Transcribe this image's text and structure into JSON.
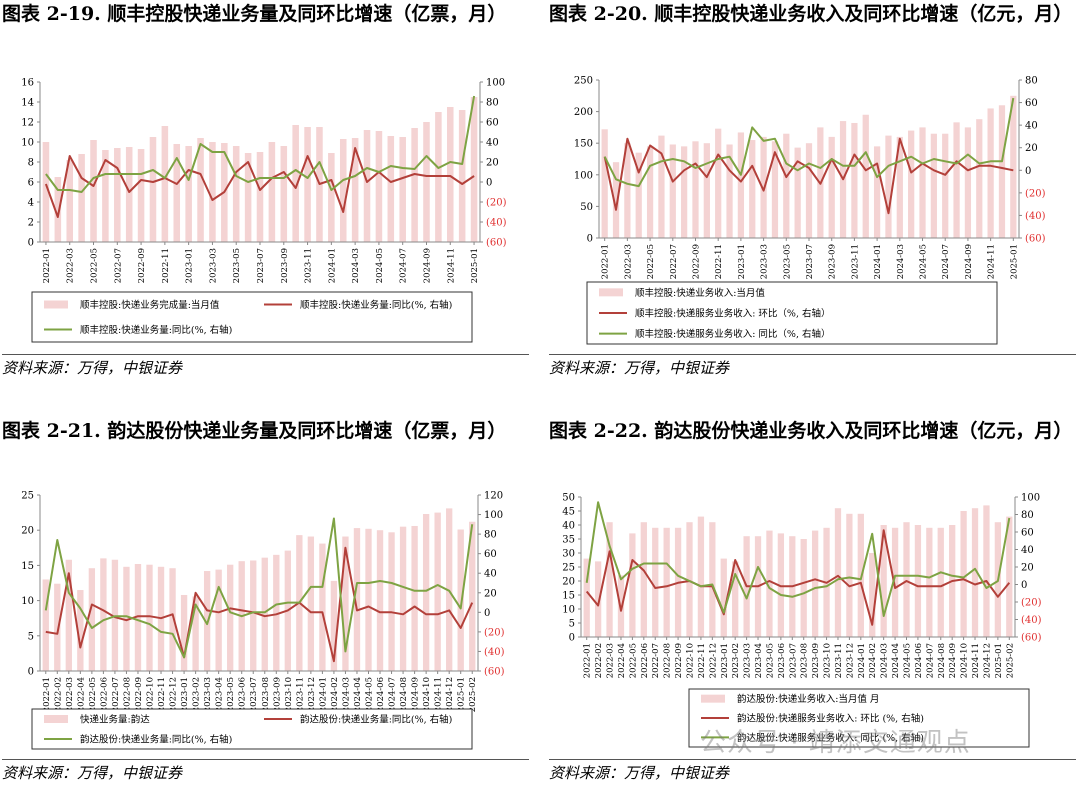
{
  "source_note": "资料来源：万得，中银证券",
  "watermark": "公众号 · 靖添交通观点",
  "colors": {
    "bar": "#f4d3d3",
    "mom": "#b3403a",
    "yoy": "#7ea343",
    "right_axis": "#e03030"
  },
  "chart_data": [
    {
      "type": "bar+line",
      "title": "图表 2-19. 顺丰控股快递业务量及同环比增速（亿票，月）",
      "left_ylim": [
        0,
        16
      ],
      "left_ticks": [
        0,
        2,
        4,
        6,
        8,
        10,
        12,
        14,
        16
      ],
      "right_ylim": [
        -60,
        100
      ],
      "right_ticks": [
        -60,
        -40,
        -20,
        0,
        20,
        40,
        60,
        80,
        100
      ],
      "right_tick_labels": [
        "(60)",
        "(40)",
        "(20)",
        "0",
        "20",
        "40",
        "60",
        "80",
        "100"
      ],
      "x_tick_labels": [
        "2022-01",
        "2022-03",
        "2022-05",
        "2022-07",
        "2022-09",
        "2022-11",
        "2023-01",
        "2023-03",
        "2023-05",
        "2023-07",
        "2023-09",
        "2023-11",
        "2024-01",
        "2024-03",
        "2024-05",
        "2024-07",
        "2024-09",
        "2024-11",
        "2025-01"
      ],
      "legend": [
        "顺丰控股:快递业务完成量:当月值",
        "顺丰控股:快递业务量:同比(%, 右轴)",
        "顺丰控股:快递业务量:同比(%, 右轴)"
      ],
      "bars": [
        10.0,
        6.5,
        8.2,
        8.8,
        10.2,
        9.2,
        9.4,
        9.5,
        9.3,
        10.5,
        11.6,
        9.8,
        9.6,
        10.4,
        10.0,
        9.9,
        9.6,
        8.9,
        9.0,
        10.0,
        9.6,
        11.7,
        11.5,
        11.5,
        8.9,
        10.3,
        10.4,
        11.2,
        11.1,
        10.6,
        10.5,
        11.4,
        12.0,
        13.0,
        13.5,
        13.2,
        14.5
      ],
      "mom": [
        -2,
        -35,
        26,
        4,
        -4,
        22,
        14,
        -10,
        2,
        0,
        4,
        -2,
        12,
        8,
        -18,
        -10,
        10,
        20,
        -8,
        4,
        10,
        -6,
        26,
        -2,
        2,
        -30,
        34,
        0,
        10,
        0,
        4,
        8,
        6,
        6,
        6,
        -2,
        6
      ],
      "yoy": [
        8,
        -8,
        -8,
        -10,
        4,
        8,
        8,
        8,
        8,
        12,
        4,
        24,
        2,
        38,
        30,
        30,
        6,
        0,
        4,
        4,
        4,
        12,
        4,
        20,
        -8,
        2,
        6,
        14,
        10,
        16,
        14,
        13,
        26,
        14,
        20,
        18,
        86
      ]
    },
    {
      "type": "bar+line",
      "title": "图表 2-20. 顺丰控股快递业务收入及同环比增速（亿元，月）",
      "left_ylim": [
        0,
        250
      ],
      "left_ticks": [
        0,
        50,
        100,
        150,
        200,
        250
      ],
      "right_ylim": [
        -60,
        80
      ],
      "right_ticks": [
        -60,
        -40,
        -20,
        0,
        20,
        40,
        60,
        80
      ],
      "right_tick_labels": [
        "(60)",
        "(40)",
        "(20)",
        "0",
        "20",
        "40",
        "60",
        "80"
      ],
      "x_tick_labels": [
        "2022-01",
        "2022-03",
        "2022-05",
        "2022-07",
        "2022-09",
        "2022-11",
        "2023-01",
        "2023-03",
        "2023-05",
        "2023-07",
        "2023-09",
        "2023-11",
        "2024-01",
        "2024-03",
        "2024-05",
        "2024-07",
        "2024-09",
        "2024-11",
        "2025-01"
      ],
      "legend": [
        "顺丰控股:快递业务收入:当月值",
        "顺丰控股:快递服务业务收入: 环比（%, 右轴）",
        "顺丰控股:快递服务业务收入: 同比（%, 右轴）"
      ],
      "bars": [
        172,
        120,
        150,
        135,
        145,
        162,
        148,
        145,
        153,
        150,
        173,
        148,
        167,
        155,
        160,
        153,
        165,
        143,
        150,
        175,
        160,
        185,
        182,
        195,
        145,
        162,
        160,
        170,
        175,
        165,
        165,
        183,
        175,
        188,
        205,
        210,
        225
      ],
      "mom": [
        12,
        -35,
        28,
        -2,
        22,
        15,
        -10,
        0,
        6,
        -6,
        14,
        0,
        -10,
        4,
        -18,
        16,
        -6,
        8,
        2,
        -12,
        10,
        -8,
        14,
        0,
        6,
        -38,
        28,
        -2,
        6,
        0,
        -4,
        8,
        0,
        4,
        4,
        2,
        0
      ],
      "yoy": [
        12,
        -8,
        -12,
        -14,
        4,
        8,
        10,
        8,
        2,
        6,
        10,
        12,
        -4,
        38,
        26,
        28,
        6,
        0,
        6,
        2,
        10,
        4,
        4,
        16,
        -6,
        4,
        8,
        12,
        6,
        10,
        8,
        6,
        14,
        6,
        8,
        8,
        64
      ]
    },
    {
      "type": "bar+line",
      "title": "图表 2-21. 韵达股份快递业务量及同环比增速（亿票，月）",
      "left_ylim": [
        0,
        25
      ],
      "left_ticks": [
        0,
        5,
        10,
        15,
        20,
        25
      ],
      "right_ylim": [
        -60,
        120
      ],
      "right_ticks": [
        -60,
        -40,
        -20,
        0,
        20,
        40,
        60,
        80,
        100,
        120
      ],
      "right_tick_labels": [
        "(60)",
        "(40)",
        "(20)",
        "0",
        "20",
        "40",
        "60",
        "80",
        "100",
        "120"
      ],
      "x_tick_labels": [
        "2022-01",
        "2022-02",
        "2022-03",
        "2022-04",
        "2022-05",
        "2022-06",
        "2022-07",
        "2022-08",
        "2022-09",
        "2022-10",
        "2022-11",
        "2022-12",
        "2023-01",
        "2023-02",
        "2023-03",
        "2023-04",
        "2023-05",
        "2023-06",
        "2023-07",
        "2023-08",
        "2023-09",
        "2023-10",
        "2023-11",
        "2023-12",
        "2024-01",
        "2024-02",
        "2024-03",
        "2024-04",
        "2024-05",
        "2024-06",
        "2024-07",
        "2024-08",
        "2024-09",
        "2024-10",
        "2024-11",
        "2024-12",
        "2025-01",
        "2025-02"
      ],
      "legend": [
        "快递业务量:韵达",
        "韵达股份:快递业务量:同比(%, 右轴)",
        "韵达股份:快递业务量:同比(%, 右轴)"
      ],
      "bars": [
        13.0,
        12.4,
        15.8,
        11.5,
        14.6,
        16.0,
        15.8,
        14.8,
        15.2,
        15.1,
        14.8,
        14.6,
        10.8,
        10.6,
        14.2,
        14.4,
        15.1,
        15.6,
        15.7,
        16.1,
        16.5,
        17.1,
        19.3,
        19.1,
        18.1,
        12.8,
        19.1,
        20.3,
        20.2,
        20.0,
        19.7,
        20.5,
        20.6,
        22.3,
        22.5,
        23.1,
        20.1,
        21.2
      ],
      "mom": [
        -20,
        -22,
        40,
        -36,
        8,
        2,
        -5,
        -8,
        -4,
        -4,
        -6,
        -2,
        -46,
        20,
        2,
        0,
        4,
        2,
        0,
        -4,
        -2,
        2,
        10,
        0,
        0,
        -50,
        66,
        2,
        6,
        0,
        0,
        -2,
        6,
        -2,
        -2,
        2,
        -16,
        10
      ],
      "yoy": [
        2,
        74,
        20,
        4,
        -16,
        -8,
        -4,
        -4,
        -8,
        -12,
        -20,
        -22,
        -46,
        8,
        -12,
        26,
        0,
        -4,
        0,
        0,
        8,
        10,
        10,
        26,
        26,
        96,
        -40,
        30,
        30,
        32,
        30,
        26,
        22,
        22,
        28,
        22,
        4,
        90
      ]
    },
    {
      "type": "bar+line",
      "title": "图表 2-22. 韵达股份快递业务收入及同环比增速（亿元，月）",
      "left_ylim": [
        0,
        50
      ],
      "left_ticks": [
        0,
        5,
        10,
        15,
        20,
        25,
        30,
        35,
        40,
        45,
        50
      ],
      "right_ylim": [
        -60,
        100
      ],
      "right_ticks": [
        -60,
        -40,
        -20,
        0,
        20,
        40,
        60,
        80,
        100
      ],
      "right_tick_labels": [
        "(60)",
        "(40)",
        "(20)",
        "0",
        "20",
        "40",
        "60",
        "80",
        "100"
      ],
      "x_tick_labels": [
        "2022-01",
        "2022-02",
        "2022-03",
        "2022-04",
        "2022-05",
        "2022-06",
        "2022-07",
        "2022-08",
        "2022-09",
        "2022-10",
        "2022-11",
        "2022-12",
        "2023-01",
        "2023-02",
        "2023-03",
        "2023-04",
        "2023-05",
        "2023-06",
        "2023-07",
        "2023-08",
        "2023-09",
        "2023-10",
        "2023-11",
        "2023-12",
        "2024-01",
        "2024-02",
        "2024-03",
        "2024-04",
        "2024-05",
        "2024-06",
        "2024-07",
        "2024-08",
        "2024-09",
        "2024-10",
        "2024-11",
        "2024-12",
        "2025-01",
        "2025-02"
      ],
      "legend": [
        "韵达股份:快递业务收入:当月值 月",
        "韵达股份:快递服务业务收入: 环比 (%, 右轴)",
        "韵达股份:快递服务业务收入: 同比 (%, 右轴)"
      ],
      "bars": [
        28.0,
        27.0,
        41.0,
        22.0,
        37.0,
        41.0,
        39.0,
        39.0,
        39.0,
        41.0,
        43.0,
        41.0,
        28.0,
        27.0,
        36.0,
        36.0,
        38.0,
        37.0,
        36.0,
        35.0,
        38.0,
        39.0,
        46.0,
        44.0,
        44.0,
        30.0,
        40.0,
        39.0,
        41.0,
        40.0,
        39.0,
        39.0,
        40.0,
        45.0,
        46.0,
        47.0,
        41.0,
        43.0
      ],
      "mom": [
        -8,
        -24,
        38,
        -30,
        28,
        16,
        -4,
        -2,
        2,
        4,
        -2,
        -2,
        -34,
        28,
        -2,
        -2,
        4,
        -2,
        -2,
        2,
        6,
        2,
        10,
        -2,
        2,
        -46,
        62,
        -4,
        4,
        -2,
        -2,
        -2,
        4,
        6,
        0,
        4,
        -14,
        2
      ],
      "yoy": [
        2,
        94,
        44,
        6,
        18,
        24,
        24,
        24,
        10,
        4,
        -2,
        0,
        -32,
        12,
        -16,
        20,
        -4,
        -12,
        -14,
        -10,
        -4,
        -2,
        6,
        8,
        6,
        58,
        -36,
        10,
        10,
        10,
        8,
        14,
        10,
        8,
        18,
        -4,
        4,
        76
      ]
    }
  ]
}
